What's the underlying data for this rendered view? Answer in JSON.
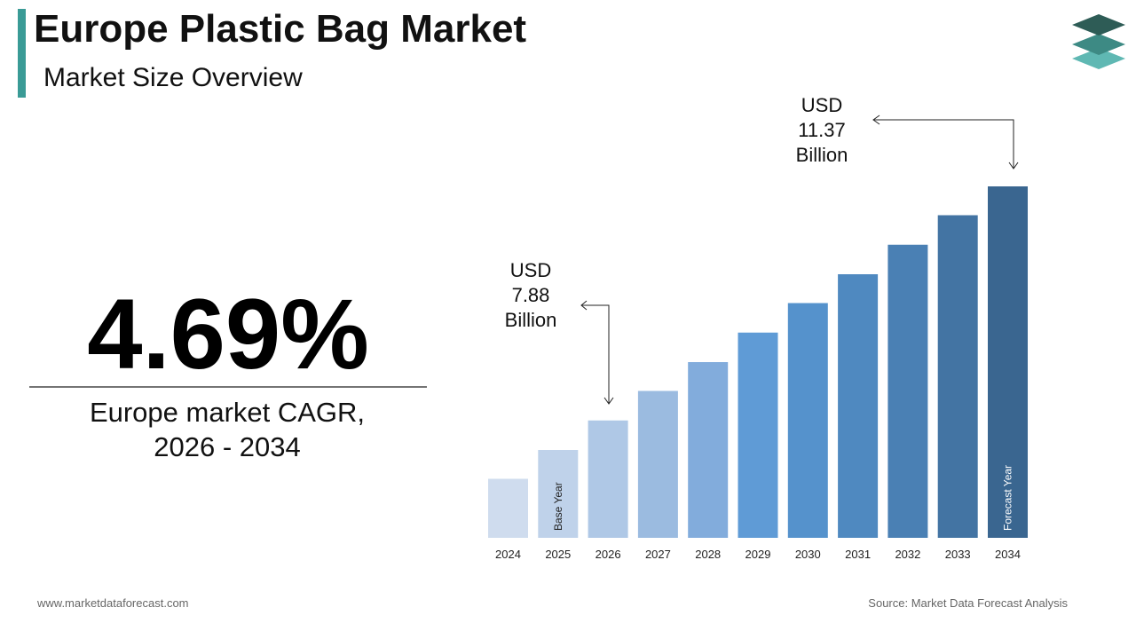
{
  "header": {
    "title": "Europe Plastic Bag Market",
    "subtitle": "Market Size Overview"
  },
  "highlight": {
    "value": "4.69%",
    "caption_lines": [
      "Europe market CAGR,",
      "2026 - 2034"
    ]
  },
  "footer": {
    "website": "www.marketdataforecast.com",
    "source": "Source: Market Data Forecast Analysis"
  },
  "chart_data": {
    "type": "bar",
    "categories": [
      "2024",
      "2025",
      "2026",
      "2027",
      "2028",
      "2029",
      "2030",
      "2031",
      "2032",
      "2033",
      "2034"
    ],
    "values": [
      7.01,
      7.44,
      7.88,
      8.32,
      8.75,
      9.19,
      9.63,
      10.06,
      10.5,
      10.94,
      11.37
    ],
    "value_labels": [
      null,
      null,
      "USD 7.88 Billion",
      null,
      null,
      null,
      null,
      null,
      null,
      null,
      "USD 11.37 Billion"
    ],
    "bar_labels": [
      null,
      "Base Year",
      null,
      null,
      null,
      null,
      null,
      null,
      null,
      null,
      "Forecast Year"
    ],
    "colors": [
      "#cfdcee",
      "#bfd2ea",
      "#afc8e6",
      "#9bbbe0",
      "#82acdc",
      "#5f9bd6",
      "#5592cc",
      "#4f89c0",
      "#4a80b4",
      "#4374a3",
      "#3a6690"
    ],
    "ylim": [
      6.13,
      11.37
    ]
  }
}
